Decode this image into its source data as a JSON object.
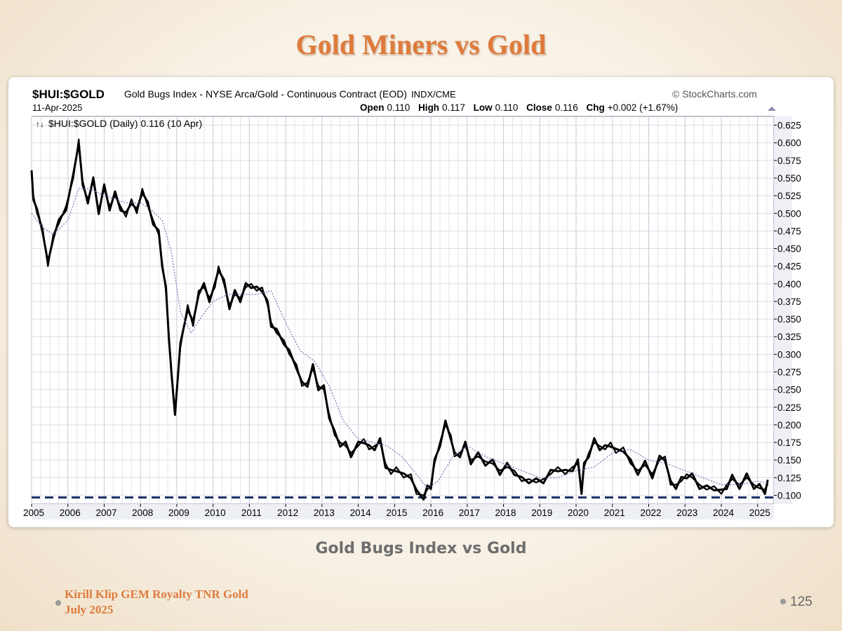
{
  "slide": {
    "title": "Gold Miners vs Gold",
    "caption": "Gold Bugs Index vs Gold",
    "footer_line1": "Kirill Klip GEM Royalty TNR Gold",
    "footer_line2": "July 2025",
    "page_number": "125"
  },
  "chart_header": {
    "symbol": "$HUI:$GOLD",
    "description": "Gold Bugs Index - NYSE Arca/Gold - Continuous Contract (EOD)",
    "exchange": "INDX/CME",
    "source": "© StockCharts.com",
    "date": "11-Apr-2025",
    "open_label": "Open",
    "open_value": "0.110",
    "high_label": "High",
    "high_value": "0.117",
    "low_label": "Low",
    "low_value": "0.110",
    "close_label": "Close",
    "close_value": "0.116",
    "chg_label": "Chg",
    "chg_value": "+0.002 (+1.67%)",
    "legend": "$HUI:$GOLD (Daily) 0.116 (10 Apr)"
  },
  "colors": {
    "price": "#000000",
    "moving_average": "#7a70b0",
    "support_line": "#1d2f66",
    "grid": "#dcdce6",
    "title": "#de7b3c"
  },
  "chart_data": {
    "type": "line",
    "x_unit": "year",
    "xlim": [
      2005,
      2025.45
    ],
    "ylim": [
      0.0875,
      0.6375
    ],
    "y_ticks": [
      "0.100",
      "0.125",
      "0.150",
      "0.175",
      "0.200",
      "0.225",
      "0.250",
      "0.275",
      "0.300",
      "0.325",
      "0.350",
      "0.375",
      "0.400",
      "0.425",
      "0.450",
      "0.475",
      "0.500",
      "0.525",
      "0.550",
      "0.575",
      "0.600",
      "0.625"
    ],
    "x_ticks": [
      "2005",
      "2006",
      "2007",
      "2008",
      "2009",
      "2010",
      "2011",
      "2012",
      "2013",
      "2014",
      "2015",
      "2016",
      "2017",
      "2018",
      "2019",
      "2020",
      "2021",
      "2022",
      "2023",
      "2024",
      "2025"
    ],
    "grid": true,
    "series": [
      {
        "name": "$HUI:$GOLD",
        "style": "price",
        "x": [
          2005.0,
          2005.05,
          2005.15,
          2005.3,
          2005.45,
          2005.6,
          2005.75,
          2005.95,
          2006.15,
          2006.3,
          2006.4,
          2006.55,
          2006.7,
          2006.85,
          2007.0,
          2007.15,
          2007.3,
          2007.45,
          2007.6,
          2007.75,
          2007.9,
          2008.05,
          2008.2,
          2008.35,
          2008.5,
          2008.6,
          2008.7,
          2008.78,
          2008.85,
          2008.95,
          2009.1,
          2009.3,
          2009.45,
          2009.6,
          2009.75,
          2009.9,
          2010.05,
          2010.15,
          2010.3,
          2010.45,
          2010.6,
          2010.75,
          2010.9,
          2011.05,
          2011.2,
          2011.35,
          2011.5,
          2011.6,
          2011.75,
          2011.95,
          2012.1,
          2012.3,
          2012.45,
          2012.6,
          2012.75,
          2012.9,
          2013.05,
          2013.2,
          2013.35,
          2013.5,
          2013.65,
          2013.8,
          2014.0,
          2014.15,
          2014.3,
          2014.45,
          2014.6,
          2014.75,
          2014.9,
          2015.05,
          2015.25,
          2015.45,
          2015.6,
          2015.8,
          2015.9,
          2016.0,
          2016.1,
          2016.25,
          2016.4,
          2016.55,
          2016.65,
          2016.8,
          2016.95,
          2017.1,
          2017.3,
          2017.5,
          2017.7,
          2017.9,
          2018.1,
          2018.3,
          2018.5,
          2018.7,
          2018.9,
          2019.1,
          2019.3,
          2019.5,
          2019.7,
          2019.9,
          2020.05,
          2020.15,
          2020.22,
          2020.35,
          2020.5,
          2020.65,
          2020.8,
          2020.95,
          2021.1,
          2021.3,
          2021.5,
          2021.7,
          2021.9,
          2022.1,
          2022.3,
          2022.45,
          2022.6,
          2022.75,
          2022.9,
          2023.05,
          2023.2,
          2023.4,
          2023.6,
          2023.8,
          2024.0,
          2024.15,
          2024.3,
          2024.5,
          2024.7,
          2024.9,
          2025.05,
          2025.2,
          2025.28
        ],
        "y": [
          0.555,
          0.525,
          0.5,
          0.48,
          0.425,
          0.47,
          0.485,
          0.51,
          0.55,
          0.605,
          0.54,
          0.52,
          0.545,
          0.505,
          0.535,
          0.51,
          0.525,
          0.51,
          0.495,
          0.52,
          0.5,
          0.535,
          0.51,
          0.49,
          0.47,
          0.43,
          0.39,
          0.33,
          0.27,
          0.22,
          0.31,
          0.37,
          0.34,
          0.39,
          0.395,
          0.38,
          0.395,
          0.425,
          0.4,
          0.37,
          0.385,
          0.38,
          0.395,
          0.4,
          0.39,
          0.395,
          0.37,
          0.345,
          0.33,
          0.32,
          0.3,
          0.285,
          0.255,
          0.26,
          0.28,
          0.255,
          0.25,
          0.215,
          0.185,
          0.175,
          0.17,
          0.16,
          0.17,
          0.18,
          0.165,
          0.17,
          0.175,
          0.145,
          0.13,
          0.14,
          0.125,
          0.13,
          0.102,
          0.1,
          0.108,
          0.115,
          0.145,
          0.175,
          0.2,
          0.185,
          0.155,
          0.16,
          0.17,
          0.15,
          0.155,
          0.148,
          0.145,
          0.135,
          0.14,
          0.135,
          0.12,
          0.123,
          0.118,
          0.123,
          0.13,
          0.14,
          0.13,
          0.14,
          0.145,
          0.108,
          0.14,
          0.16,
          0.175,
          0.17,
          0.165,
          0.175,
          0.16,
          0.168,
          0.145,
          0.135,
          0.143,
          0.13,
          0.15,
          0.155,
          0.115,
          0.115,
          0.12,
          0.13,
          0.125,
          0.115,
          0.108,
          0.113,
          0.102,
          0.115,
          0.123,
          0.115,
          0.125,
          0.115,
          0.11,
          0.108,
          0.116
        ]
      },
      {
        "name": "",
        "style": "moving_average",
        "x": [
          2005.0,
          2005.3,
          2005.6,
          2006.0,
          2006.3,
          2006.6,
          2007.0,
          2007.3,
          2007.6,
          2008.0,
          2008.3,
          2008.6,
          2008.85,
          2009.1,
          2009.4,
          2009.7,
          2010.0,
          2010.4,
          2010.8,
          2011.2,
          2011.6,
          2012.0,
          2012.4,
          2012.8,
          2013.2,
          2013.6,
          2014.0,
          2014.4,
          2014.8,
          2015.2,
          2015.6,
          2015.9,
          2016.2,
          2016.6,
          2017.0,
          2017.5,
          2018.0,
          2018.5,
          2019.0,
          2019.5,
          2020.0,
          2020.5,
          2021.0,
          2021.5,
          2022.0,
          2022.5,
          2023.0,
          2023.5,
          2024.0,
          2024.5,
          2025.0,
          2025.3
        ],
        "y": [
          0.5,
          0.48,
          0.47,
          0.49,
          0.535,
          0.535,
          0.525,
          0.52,
          0.515,
          0.515,
          0.505,
          0.49,
          0.445,
          0.36,
          0.33,
          0.355,
          0.375,
          0.385,
          0.385,
          0.385,
          0.39,
          0.345,
          0.305,
          0.29,
          0.255,
          0.205,
          0.18,
          0.175,
          0.17,
          0.155,
          0.13,
          0.11,
          0.12,
          0.155,
          0.17,
          0.155,
          0.145,
          0.135,
          0.125,
          0.125,
          0.135,
          0.14,
          0.16,
          0.165,
          0.15,
          0.145,
          0.135,
          0.125,
          0.115,
          0.115,
          0.12,
          0.117
        ]
      }
    ],
    "annotations": [
      {
        "type": "horizontal_line",
        "y": 0.097,
        "style": "dashed"
      }
    ]
  }
}
